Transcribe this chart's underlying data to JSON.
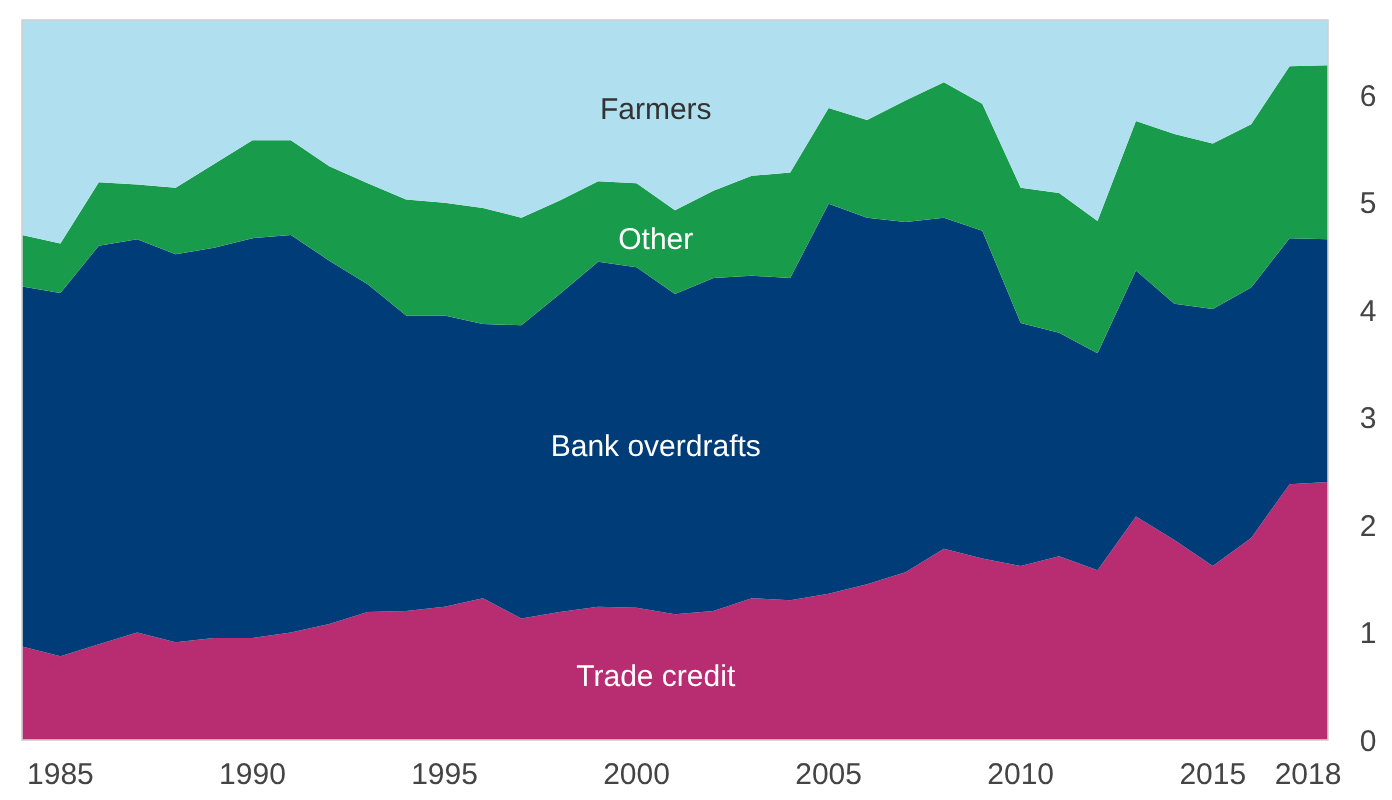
{
  "chart_data": {
    "type": "area",
    "stacked": true,
    "grid": false,
    "x": [
      1984,
      1985,
      1986,
      1987,
      1988,
      1989,
      1990,
      1991,
      1992,
      1993,
      1994,
      1995,
      1996,
      1997,
      1998,
      1999,
      2000,
      2001,
      2002,
      2003,
      2004,
      2005,
      2006,
      2007,
      2008,
      2009,
      2010,
      2011,
      2012,
      2013,
      2014,
      2015,
      2016,
      2017,
      2018
    ],
    "xlim": [
      1984,
      2018
    ],
    "xticks": [
      1985,
      1990,
      1995,
      2000,
      2005,
      2010,
      2015,
      2018
    ],
    "ylim": [
      0,
      6.7
    ],
    "yticks": [
      0,
      1,
      2,
      3,
      4,
      5,
      6
    ],
    "series": [
      {
        "name": "Trade credit",
        "color": "#b82c72",
        "values": [
          0.87,
          0.78,
          0.89,
          1.0,
          0.91,
          0.95,
          0.95,
          1.0,
          1.08,
          1.19,
          1.2,
          1.24,
          1.32,
          1.13,
          1.19,
          1.24,
          1.23,
          1.17,
          1.2,
          1.32,
          1.3,
          1.36,
          1.45,
          1.56,
          1.78,
          1.69,
          1.62,
          1.71,
          1.58,
          2.08,
          1.86,
          1.62,
          1.88,
          2.38,
          2.4
        ]
      },
      {
        "name": "Bank overdrafts",
        "color": "#003c78",
        "values": [
          3.35,
          3.38,
          3.71,
          3.66,
          3.61,
          3.63,
          3.72,
          3.7,
          3.38,
          3.05,
          2.75,
          2.71,
          2.55,
          2.73,
          2.96,
          3.21,
          3.17,
          2.98,
          3.1,
          3.0,
          3.0,
          3.63,
          3.41,
          3.26,
          3.08,
          3.05,
          2.26,
          2.08,
          2.02,
          2.29,
          2.2,
          2.39,
          2.33,
          2.29,
          2.26
        ]
      },
      {
        "name": "Other",
        "color": "#189b4a",
        "values": [
          0.48,
          0.46,
          0.59,
          0.51,
          0.62,
          0.78,
          0.91,
          0.88,
          0.88,
          0.94,
          1.08,
          1.05,
          1.08,
          1.0,
          0.87,
          0.75,
          0.78,
          0.78,
          0.81,
          0.93,
          0.98,
          0.89,
          0.91,
          1.13,
          1.26,
          1.18,
          1.26,
          1.3,
          1.23,
          1.39,
          1.58,
          1.54,
          1.52,
          1.6,
          1.62
        ]
      },
      {
        "name": "Farmers",
        "color": "#b0e0f0",
        "values": [
          2.0,
          2.08,
          1.51,
          1.53,
          1.56,
          1.34,
          1.12,
          1.12,
          1.36,
          1.52,
          1.67,
          1.7,
          1.75,
          1.84,
          1.68,
          1.5,
          1.52,
          1.77,
          1.59,
          1.45,
          1.42,
          0.82,
          0.93,
          0.75,
          0.58,
          0.78,
          1.56,
          1.61,
          1.87,
          0.94,
          1.06,
          1.15,
          0.97,
          0.43,
          0.42
        ]
      }
    ]
  }
}
